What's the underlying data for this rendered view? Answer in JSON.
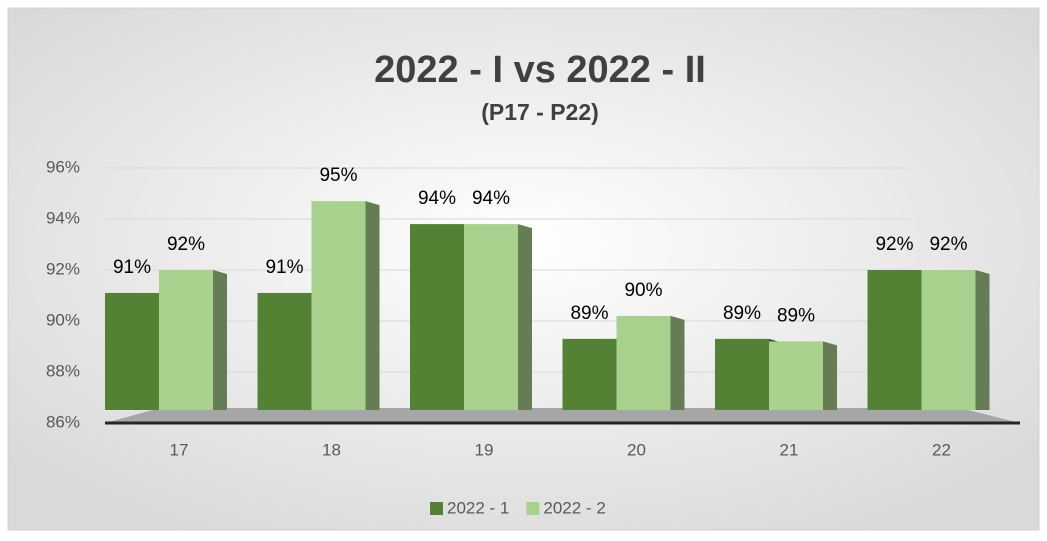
{
  "chart_data": {
    "type": "bar",
    "title": "2022 - I vs 2022 - II",
    "subtitle": "(P17 - P22)",
    "categories": [
      "17",
      "18",
      "19",
      "20",
      "21",
      "22"
    ],
    "series": [
      {
        "name": "2022 - 1",
        "color": "#548235",
        "values": [
          91.1,
          91.1,
          93.8,
          89.3,
          89.3,
          92.0
        ],
        "value_labels": [
          "91%",
          "91%",
          "94%",
          "89%",
          "89%",
          "92%"
        ]
      },
      {
        "name": "2022 - 2",
        "color": "#a9d18e",
        "values": [
          92.0,
          94.7,
          93.8,
          90.2,
          89.2,
          92.0
        ],
        "value_labels": [
          "92%",
          "95%",
          "94%",
          "90%",
          "89%",
          "92%"
        ]
      }
    ],
    "ylim": [
      86,
      96
    ],
    "yticks": [
      {
        "value": 86,
        "label": "86%"
      },
      {
        "value": 88,
        "label": "88%"
      },
      {
        "value": 90,
        "label": "90%"
      },
      {
        "value": 92,
        "label": "92%"
      },
      {
        "value": 94,
        "label": "94%"
      },
      {
        "value": 96,
        "label": "96%"
      }
    ],
    "grid": true,
    "legend": "bottom"
  }
}
